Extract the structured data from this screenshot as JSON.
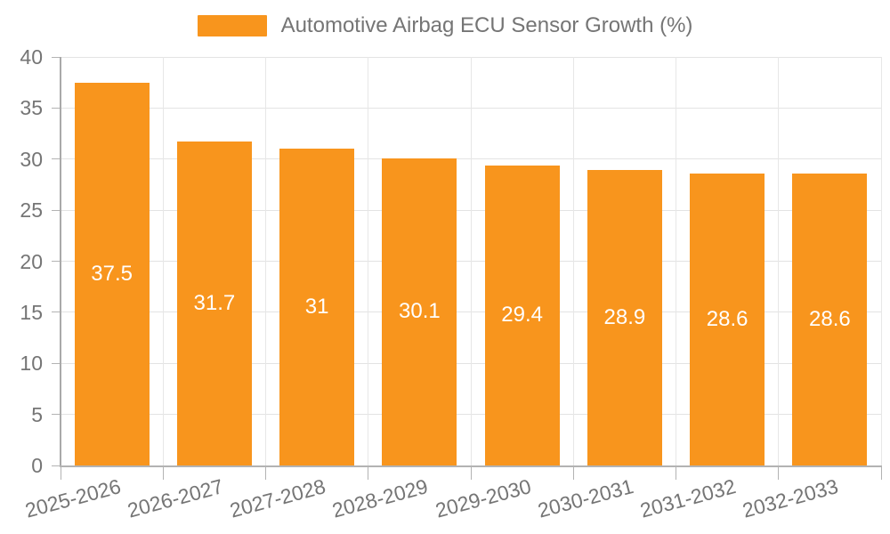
{
  "legend": {
    "label": "Automotive Airbag ECU Sensor Growth (%)"
  },
  "chart_data": {
    "type": "bar",
    "title": "Automotive Airbag ECU Sensor Growth (%)",
    "xlabel": "",
    "ylabel": "",
    "categories": [
      "2025-2026",
      "2026-2027",
      "2027-2028",
      "2028-2029",
      "2029-2030",
      "2030-2031",
      "2031-2032",
      "2032-2033"
    ],
    "series": [
      {
        "name": "Automotive Airbag ECU Sensor Growth (%)",
        "values": [
          37.5,
          31.7,
          31,
          30.1,
          29.4,
          28.9,
          28.6,
          28.6
        ],
        "value_labels": [
          "37.5",
          "31.7",
          "31",
          "30.1",
          "29.4",
          "28.9",
          "28.6",
          "28.6"
        ]
      }
    ],
    "ylim": [
      0,
      40
    ],
    "yticks": [
      0,
      5,
      10,
      15,
      20,
      25,
      30,
      35,
      40
    ],
    "grid": true,
    "legend_position": "top-center",
    "value_labels_inside_bars": true,
    "colors": {
      "bar": "#f8951d",
      "bar_label": "#ffffff",
      "axis_text": "#757575",
      "grid_line": "#e3e3e3",
      "axis_line": "#b0b0b0"
    }
  }
}
